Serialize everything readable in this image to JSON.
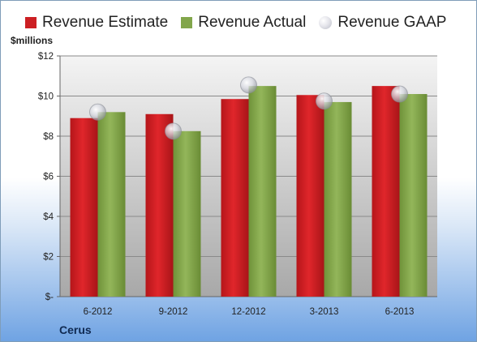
{
  "legend": {
    "estimate_label": "Revenue Estimate",
    "actual_label": "Revenue Actual",
    "gaap_label": "Revenue GAAP"
  },
  "units_label": "$millions",
  "company": "Cerus",
  "colors": {
    "estimate": "#cc1f23",
    "actual": "#82a64b",
    "plot_bg_top": "#f4f4f4",
    "plot_bg_bottom": "#a8a8a8"
  },
  "chart_data": {
    "type": "bar",
    "categories": [
      "6-2012",
      "9-2012",
      "12-2012",
      "3-2013",
      "6-2013"
    ],
    "series": [
      {
        "name": "Revenue Estimate",
        "values": [
          8.9,
          9.1,
          9.85,
          10.05,
          10.5
        ]
      },
      {
        "name": "Revenue Actual",
        "values": [
          9.2,
          8.25,
          10.5,
          9.7,
          10.1
        ]
      },
      {
        "name": "Revenue GAAP",
        "values": [
          9.2,
          8.25,
          10.55,
          9.75,
          10.1
        ]
      }
    ],
    "ylabel": "$millions",
    "ylim": [
      0,
      12
    ],
    "yticks": [
      0,
      2,
      4,
      6,
      8,
      10,
      12
    ],
    "ytick_labels": [
      "$-",
      "$2",
      "$4",
      "$6",
      "$8",
      "$10",
      "$12"
    ],
    "grid": true,
    "legend_position": "top"
  }
}
